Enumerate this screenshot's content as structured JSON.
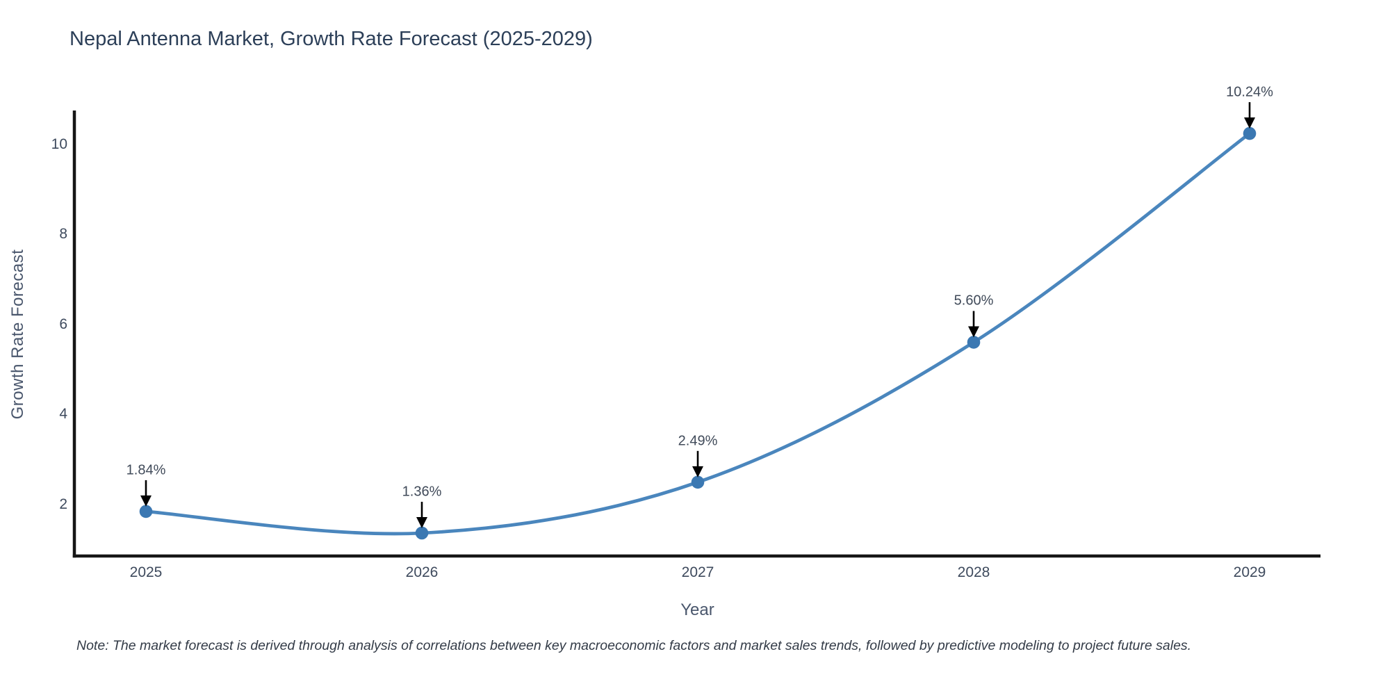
{
  "title": "Nepal Antenna Market, Growth Rate Forecast (2025-2029)",
  "note": "Note: The market forecast is derived through analysis of correlations between key macroeconomic factors and market sales trends, followed by predictive modeling to project future sales.",
  "chart_data": {
    "type": "line",
    "line_shape": "spline",
    "title": "Nepal Antenna Market, Growth Rate Forecast (2025-2029)",
    "xlabel": "Year",
    "ylabel": "Growth Rate Forecast",
    "categories": [
      2025,
      2026,
      2027,
      2028,
      2029
    ],
    "values": [
      1.84,
      1.36,
      2.49,
      5.6,
      10.24
    ],
    "point_labels": [
      "1.84%",
      "1.36%",
      "2.49%",
      "5.60%",
      "10.24%"
    ],
    "y_ticks": [
      2,
      4,
      6,
      8,
      10
    ],
    "ylim": [
      0.85,
      10.75
    ],
    "grid": false,
    "legend": "none",
    "annotation_style": "label-above-with-down-arrow",
    "colors": {
      "line": "#4a86bd",
      "marker": "#3b78b2",
      "axis": "#161616",
      "arrow": "#000000",
      "background": "#ffffff"
    }
  }
}
